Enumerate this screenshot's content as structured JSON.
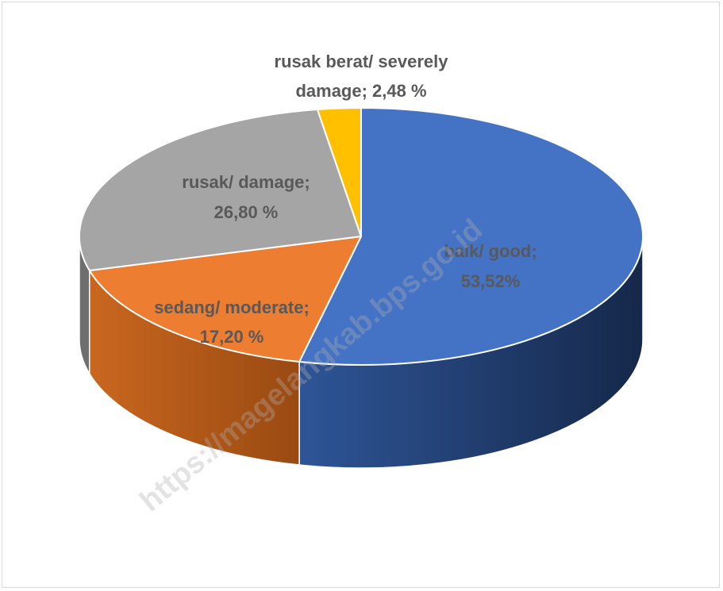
{
  "chart_data": {
    "type": "pie",
    "style": "3d",
    "slices": [
      {
        "label_line1": "baik/ good;",
        "label_line2": "53,52%",
        "value": 53.52,
        "color": "#4472C4",
        "side_color": "#1f3864"
      },
      {
        "label_line1": "sedang/ moderate;",
        "label_line2": "17,20 %",
        "value": 17.2,
        "color": "#ED7D31",
        "side_color": "#a04f18"
      },
      {
        "label_line1": "rusak/ damage;",
        "label_line2": "26,80 %",
        "value": 26.8,
        "color": "#A5A5A5",
        "side_color": "#6e6e6e"
      },
      {
        "label_line1": "rusak berat/ severely",
        "label_line2": "damage; 2,48 %",
        "value": 2.48,
        "color": "#FFC000",
        "side_color": "#b38600"
      }
    ],
    "legend": "none"
  },
  "watermark": "https://magelangkab.bps.go.id"
}
